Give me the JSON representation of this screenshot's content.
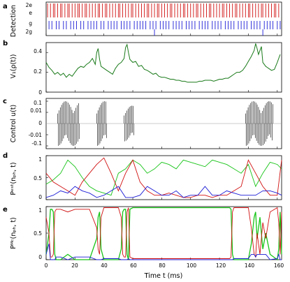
{
  "figure": {
    "xlabel": "Time t (ms)",
    "xticks": [
      "0",
      "20",
      "40",
      "60",
      "80",
      "100",
      "120",
      "140",
      "160"
    ],
    "xlim": [
      0,
      163
    ]
  },
  "colors": {
    "red": "#d11010",
    "blue": "#1a1ad6",
    "green": "#18c418",
    "darkgreen": "#1a7a1a",
    "black": "#000000",
    "gray": "#9a9a9a"
  },
  "panels": [
    {
      "label": "a",
      "ylabel": "Detection",
      "yticks": [
        "2e",
        "e",
        "g",
        "2g"
      ]
    },
    {
      "label": "b",
      "ylabel": "V₁(ρ(t))",
      "yticks": [
        "0.4",
        "0.2",
        "0"
      ]
    },
    {
      "label": "c",
      "ylabel": "Control u(t)",
      "yticks": [
        "0.1",
        "0.01",
        "0",
        "-0.01",
        "-0.1"
      ]
    },
    {
      "label": "d",
      "ylabel": "Pᵉˢᵗ(nₚₕ, t)",
      "yticks": [
        "1",
        "0.5",
        "0"
      ]
    },
    {
      "label": "e",
      "ylabel": "Pᴹᶜ(nₚₕ, t)",
      "yticks": [
        "1",
        "0.5",
        "0"
      ]
    }
  ],
  "chart_data": [
    {
      "type": "event",
      "panel": "a",
      "series": [
        {
          "name": "e",
          "color": "#d11010",
          "events_ms": [
            1,
            3,
            5,
            6,
            8,
            10,
            11,
            13,
            15,
            16,
            18,
            20,
            22,
            23,
            25,
            27,
            28,
            30,
            32,
            34,
            36,
            37,
            39,
            41,
            42,
            44,
            46,
            48,
            50,
            51,
            53,
            55,
            57,
            59,
            60,
            62,
            64,
            66,
            68,
            70,
            71,
            73,
            75,
            77,
            78,
            80,
            82,
            84,
            86,
            87,
            89,
            91,
            93,
            95,
            96,
            98,
            100,
            102,
            104,
            105,
            107,
            109,
            111,
            113,
            114,
            116,
            118,
            120,
            122,
            123,
            125,
            127,
            129,
            131,
            132,
            134,
            136,
            138,
            140,
            141,
            143,
            145,
            147,
            149,
            150,
            152,
            154,
            156,
            158,
            159,
            161
          ]
        },
        {
          "name": "g",
          "color": "#1a1ad6",
          "events_ms": [
            2,
            4,
            7,
            9,
            12,
            14,
            17,
            19,
            21,
            24,
            26,
            29,
            31,
            33,
            35,
            38,
            40,
            43,
            45,
            47,
            49,
            52,
            54,
            56,
            58,
            61,
            63,
            65,
            67,
            69,
            72,
            74,
            76,
            79,
            81,
            83,
            85,
            88,
            90,
            92,
            94,
            97,
            99,
            101,
            103,
            106,
            108,
            110,
            112,
            115,
            117,
            119,
            121,
            124,
            126,
            128,
            130,
            133,
            135,
            137,
            139,
            142,
            144,
            146,
            148,
            151,
            153,
            155,
            157,
            160,
            162
          ]
        },
        {
          "name": "2g",
          "color": "#1a1ad6",
          "events_ms": [
            75,
            150
          ]
        }
      ]
    },
    {
      "type": "line",
      "panel": "b",
      "ylim": [
        0,
        0.5
      ],
      "series": [
        {
          "color": "#1a7a1a",
          "x": [
            0,
            2,
            4,
            6,
            8,
            10,
            12,
            14,
            16,
            18,
            20,
            22,
            24,
            26,
            28,
            30,
            32,
            34,
            35,
            36,
            37,
            38,
            40,
            42,
            44,
            46,
            48,
            50,
            52,
            54,
            55,
            56,
            57,
            58,
            60,
            62,
            64,
            66,
            68,
            70,
            72,
            74,
            76,
            78,
            80,
            82,
            84,
            86,
            88,
            90,
            92,
            94,
            96,
            98,
            100,
            102,
            104,
            106,
            108,
            110,
            112,
            114,
            116,
            118,
            120,
            122,
            124,
            126,
            128,
            130,
            132,
            134,
            136,
            138,
            140,
            142,
            144,
            145,
            146,
            147,
            148,
            149,
            150,
            152,
            154,
            156,
            158,
            160,
            162
          ],
          "y": [
            0.3,
            0.25,
            0.22,
            0.18,
            0.2,
            0.17,
            0.19,
            0.15,
            0.18,
            0.16,
            0.2,
            0.24,
            0.26,
            0.25,
            0.28,
            0.3,
            0.34,
            0.28,
            0.4,
            0.44,
            0.33,
            0.26,
            0.24,
            0.22,
            0.2,
            0.18,
            0.24,
            0.28,
            0.3,
            0.34,
            0.45,
            0.48,
            0.4,
            0.33,
            0.3,
            0.31,
            0.26,
            0.27,
            0.23,
            0.22,
            0.2,
            0.18,
            0.19,
            0.16,
            0.15,
            0.15,
            0.14,
            0.13,
            0.13,
            0.12,
            0.12,
            0.11,
            0.11,
            0.1,
            0.1,
            0.1,
            0.1,
            0.11,
            0.11,
            0.12,
            0.12,
            0.12,
            0.11,
            0.12,
            0.13,
            0.13,
            0.14,
            0.14,
            0.16,
            0.18,
            0.2,
            0.2,
            0.22,
            0.26,
            0.31,
            0.36,
            0.42,
            0.49,
            0.44,
            0.38,
            0.42,
            0.46,
            0.3,
            0.26,
            0.24,
            0.22,
            0.23,
            0.3,
            0.38
          ]
        }
      ]
    },
    {
      "type": "bar",
      "panel": "c",
      "yscale": "symlog",
      "ylim": [
        -0.15,
        0.15
      ],
      "bursts": [
        {
          "x_range": [
            8,
            23
          ],
          "amplitude": 0.1
        },
        {
          "x_range": [
            35,
            42
          ],
          "amplitude": 0.1
        },
        {
          "x_range": [
            54,
            61
          ],
          "amplitude": 0.08
        },
        {
          "x_range": [
            138,
            157
          ],
          "amplitude": 0.1
        }
      ]
    },
    {
      "type": "line",
      "panel": "d",
      "ylim": [
        0,
        1
      ],
      "x": [
        0,
        5,
        10,
        15,
        20,
        25,
        30,
        35,
        40,
        45,
        50,
        55,
        60,
        65,
        70,
        75,
        80,
        85,
        90,
        95,
        100,
        105,
        110,
        115,
        120,
        125,
        130,
        135,
        140,
        145,
        150,
        155,
        160,
        163
      ],
      "series": [
        {
          "color": "#18c418",
          "values": [
            0.35,
            0.45,
            0.6,
            0.9,
            0.75,
            0.5,
            0.3,
            0.2,
            0.15,
            0.1,
            0.6,
            0.7,
            0.9,
            0.8,
            0.6,
            0.7,
            0.85,
            0.8,
            0.7,
            0.9,
            0.85,
            0.8,
            0.75,
            0.9,
            0.85,
            0.8,
            0.7,
            0.6,
            0.8,
            0.3,
            0.6,
            0.85,
            0.8,
            0.7
          ]
        },
        {
          "color": "#d11010",
          "values": [
            0.6,
            0.4,
            0.3,
            0.2,
            0.1,
            0.4,
            0.6,
            0.8,
            0.95,
            0.6,
            0.2,
            0.6,
            0.9,
            0.4,
            0.2,
            0.1,
            0.1,
            0.15,
            0.1,
            0.05,
            0.05,
            0.1,
            0.1,
            0.05,
            0.1,
            0.1,
            0.2,
            0.3,
            0.9,
            0.6,
            0.3,
            0.1,
            0.1,
            0.9
          ]
        },
        {
          "color": "#1a1ad6",
          "values": [
            0.05,
            0.1,
            0.2,
            0.15,
            0.3,
            0.2,
            0.15,
            0.05,
            0.1,
            0.2,
            0.3,
            0.05,
            0.05,
            0.1,
            0.3,
            0.2,
            0.1,
            0.1,
            0.2,
            0.05,
            0.1,
            0.1,
            0.3,
            0.1,
            0.1,
            0.2,
            0.15,
            0.1,
            0.1,
            0.1,
            0.2,
            0.2,
            0.15,
            0.1
          ]
        }
      ]
    },
    {
      "type": "line",
      "panel": "e",
      "ylim": [
        0,
        1
      ],
      "x": [
        0,
        2,
        3,
        4,
        5,
        6,
        7,
        8,
        9,
        10,
        15,
        20,
        25,
        30,
        35,
        36,
        37,
        38,
        40,
        45,
        50,
        52,
        53,
        54,
        55,
        56,
        57,
        58,
        60,
        70,
        80,
        90,
        100,
        110,
        120,
        125,
        127,
        128,
        129,
        130,
        135,
        140,
        142,
        144,
        145,
        146,
        148,
        150,
        152,
        155,
        160,
        161,
        162,
        163
      ],
      "series": [
        {
          "color": "#18c418",
          "values": [
            0.1,
            0.5,
            0.95,
            0.95,
            0.9,
            0.1,
            0,
            0,
            0,
            0,
            0.1,
            0,
            0,
            0,
            0.4,
            0.8,
            0.9,
            0.2,
            0,
            0,
            0,
            0.2,
            0.9,
            0.95,
            0.95,
            0.1,
            0,
            0.95,
            0.98,
            0.98,
            0.98,
            0.98,
            0.98,
            0.98,
            0.98,
            0.98,
            0.98,
            0.95,
            0.1,
            0,
            0,
            0,
            0.3,
            0.8,
            0.9,
            0.4,
            0.8,
            0.2,
            0.5,
            0.1,
            0,
            0.2,
            0.9,
            0.1
          ]
        },
        {
          "color": "#d11010",
          "values": [
            0.8,
            0.5,
            0.05,
            0.05,
            0.1,
            0.9,
            0.95,
            0.95,
            0.95,
            0.95,
            0.9,
            0.95,
            0.95,
            0.95,
            0.6,
            0.2,
            0.1,
            0.8,
            0.98,
            0.98,
            0.98,
            0.8,
            0.1,
            0.05,
            0.05,
            0.9,
            0.98,
            0.05,
            0.02,
            0.02,
            0.02,
            0.02,
            0.02,
            0.02,
            0.02,
            0.02,
            0.02,
            0.05,
            0.9,
            0.98,
            0.98,
            0.98,
            0.6,
            0.1,
            0.05,
            0.5,
            0.1,
            0.7,
            0.4,
            0.9,
            0.98,
            0.7,
            0.1,
            0.9
          ]
        },
        {
          "color": "#1a1ad6",
          "values": [
            0.1,
            0.3,
            0.0,
            0.0,
            0.0,
            0.0,
            0.05,
            0.05,
            0.05,
            0.05,
            0.0,
            0.05,
            0.05,
            0.05,
            0.0,
            0.0,
            0.0,
            0.0,
            0.02,
            0.02,
            0.02,
            0.0,
            0.0,
            0.0,
            0.0,
            0.0,
            0.02,
            0.0,
            0.0,
            0.0,
            0.0,
            0.0,
            0.0,
            0.0,
            0.0,
            0.0,
            0.0,
            0.0,
            0.0,
            0.02,
            0.02,
            0.02,
            0.1,
            0.1,
            0.05,
            0.1,
            0.1,
            0.1,
            0.1,
            0.0,
            0.02,
            0.1,
            0.0,
            0.0
          ]
        }
      ]
    }
  ]
}
